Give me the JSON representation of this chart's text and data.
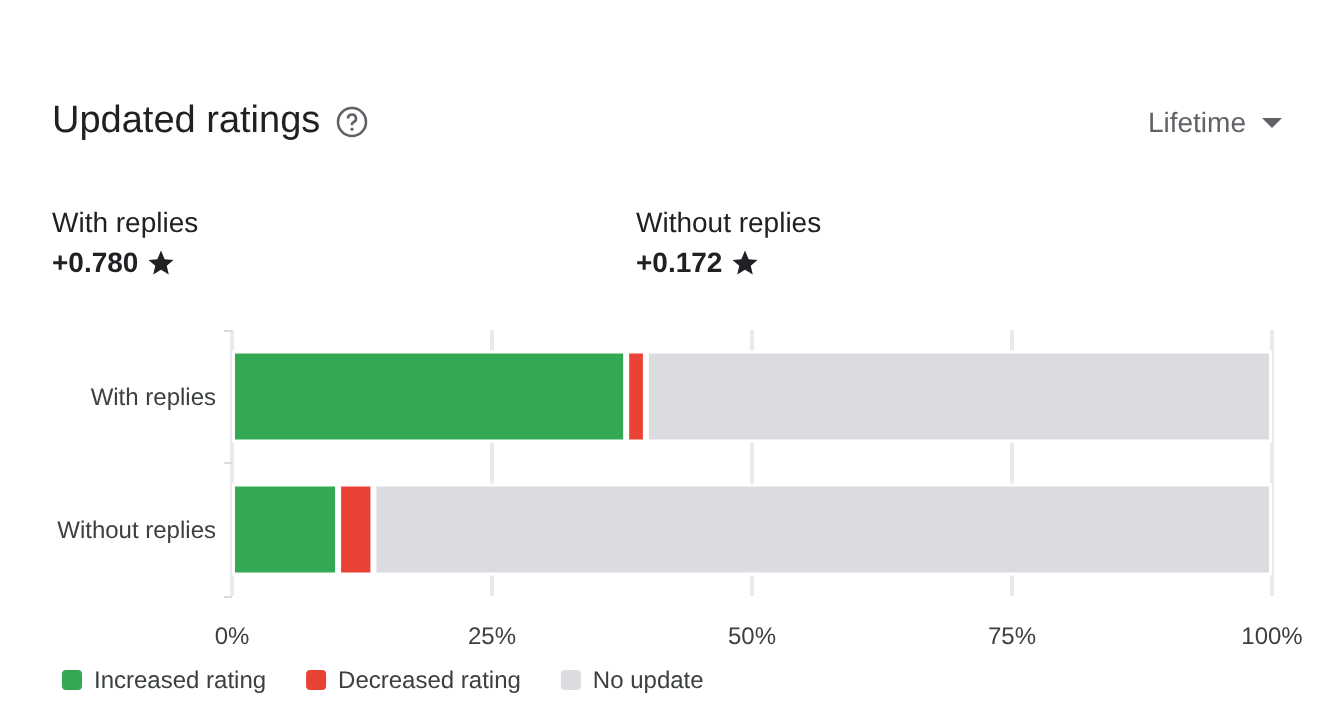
{
  "chart_data": {
    "type": "bar",
    "orientation": "horizontal",
    "stacked": true,
    "title": "Updated ratings",
    "annotations": [
      "Lifetime",
      "With replies",
      "+0.780",
      "Without replies",
      "+0.172"
    ],
    "categories": [
      "With replies",
      "Without replies"
    ],
    "series": [
      {
        "name": "Increased rating",
        "color": "#34a853",
        "values": [
          37.9,
          10.2
        ]
      },
      {
        "name": "Decreased rating",
        "color": "#ea4335",
        "values": [
          1.9,
          3.4
        ]
      },
      {
        "name": "No update",
        "color": "#dadce0",
        "values": [
          60.2,
          86.4
        ]
      }
    ],
    "xlim": [
      0,
      100
    ],
    "xticks": [
      {
        "value": 0,
        "label": "0%"
      },
      {
        "value": 25,
        "label": "25%"
      },
      {
        "value": 50,
        "label": "50%"
      },
      {
        "value": 75,
        "label": "75%"
      },
      {
        "value": 100,
        "label": "100%"
      }
    ],
    "grid": "x",
    "legend": "bottom left"
  }
}
